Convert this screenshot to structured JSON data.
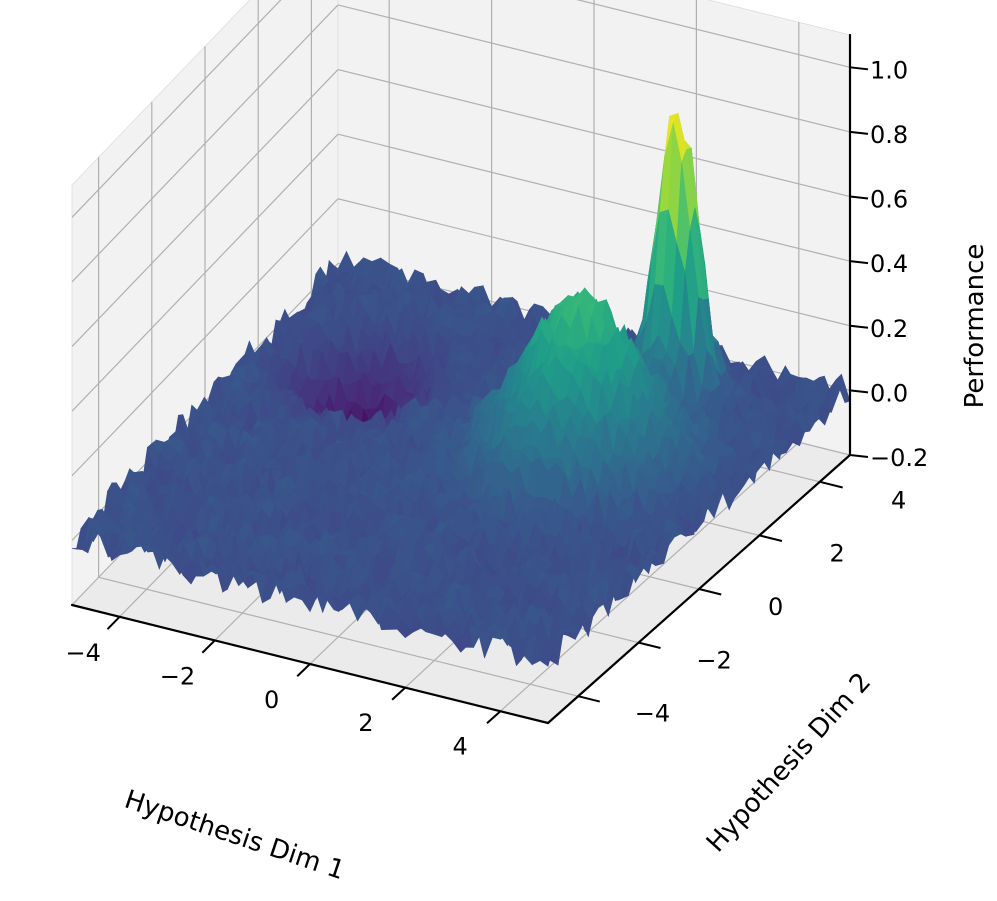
{
  "chart_data": {
    "type": "surface",
    "title": "",
    "xlabel": "Hypothesis Dim 1",
    "ylabel": "Hypothesis Dim 2",
    "zlabel": "Performance",
    "xlim": [
      -5,
      5
    ],
    "ylim": [
      -5,
      5
    ],
    "zlim": [
      -0.2,
      1.1
    ],
    "x_ticks": [
      -4,
      -2,
      0,
      2,
      4
    ],
    "y_ticks": [
      -4,
      -2,
      0,
      2,
      4
    ],
    "z_ticks": [
      -0.2,
      0.0,
      0.2,
      0.4,
      0.6,
      0.8,
      1.0
    ],
    "x_tick_labels": [
      "−4",
      "−2",
      "0",
      "2",
      "4"
    ],
    "y_tick_labels": [
      "−4",
      "−2",
      "0",
      "2",
      "4"
    ],
    "z_tick_labels": [
      "−0.2",
      "0.0",
      "0.2",
      "0.4",
      "0.6",
      "0.8",
      "1.0"
    ],
    "colormap": "viridis",
    "baseline": 0.0,
    "noise_amplitude": 0.05,
    "features": [
      {
        "kind": "peak",
        "x": 2.0,
        "y": 1.0,
        "amplitude": 0.5,
        "sigma": 1.0
      },
      {
        "kind": "peak",
        "x": 2.5,
        "y": 3.5,
        "amplitude": 0.9,
        "sigma": 0.35
      },
      {
        "kind": "dip",
        "x": -3.0,
        "y": 2.0,
        "amplitude": -0.25,
        "sigma": 0.7
      }
    ],
    "grid": true,
    "legend": "none"
  }
}
